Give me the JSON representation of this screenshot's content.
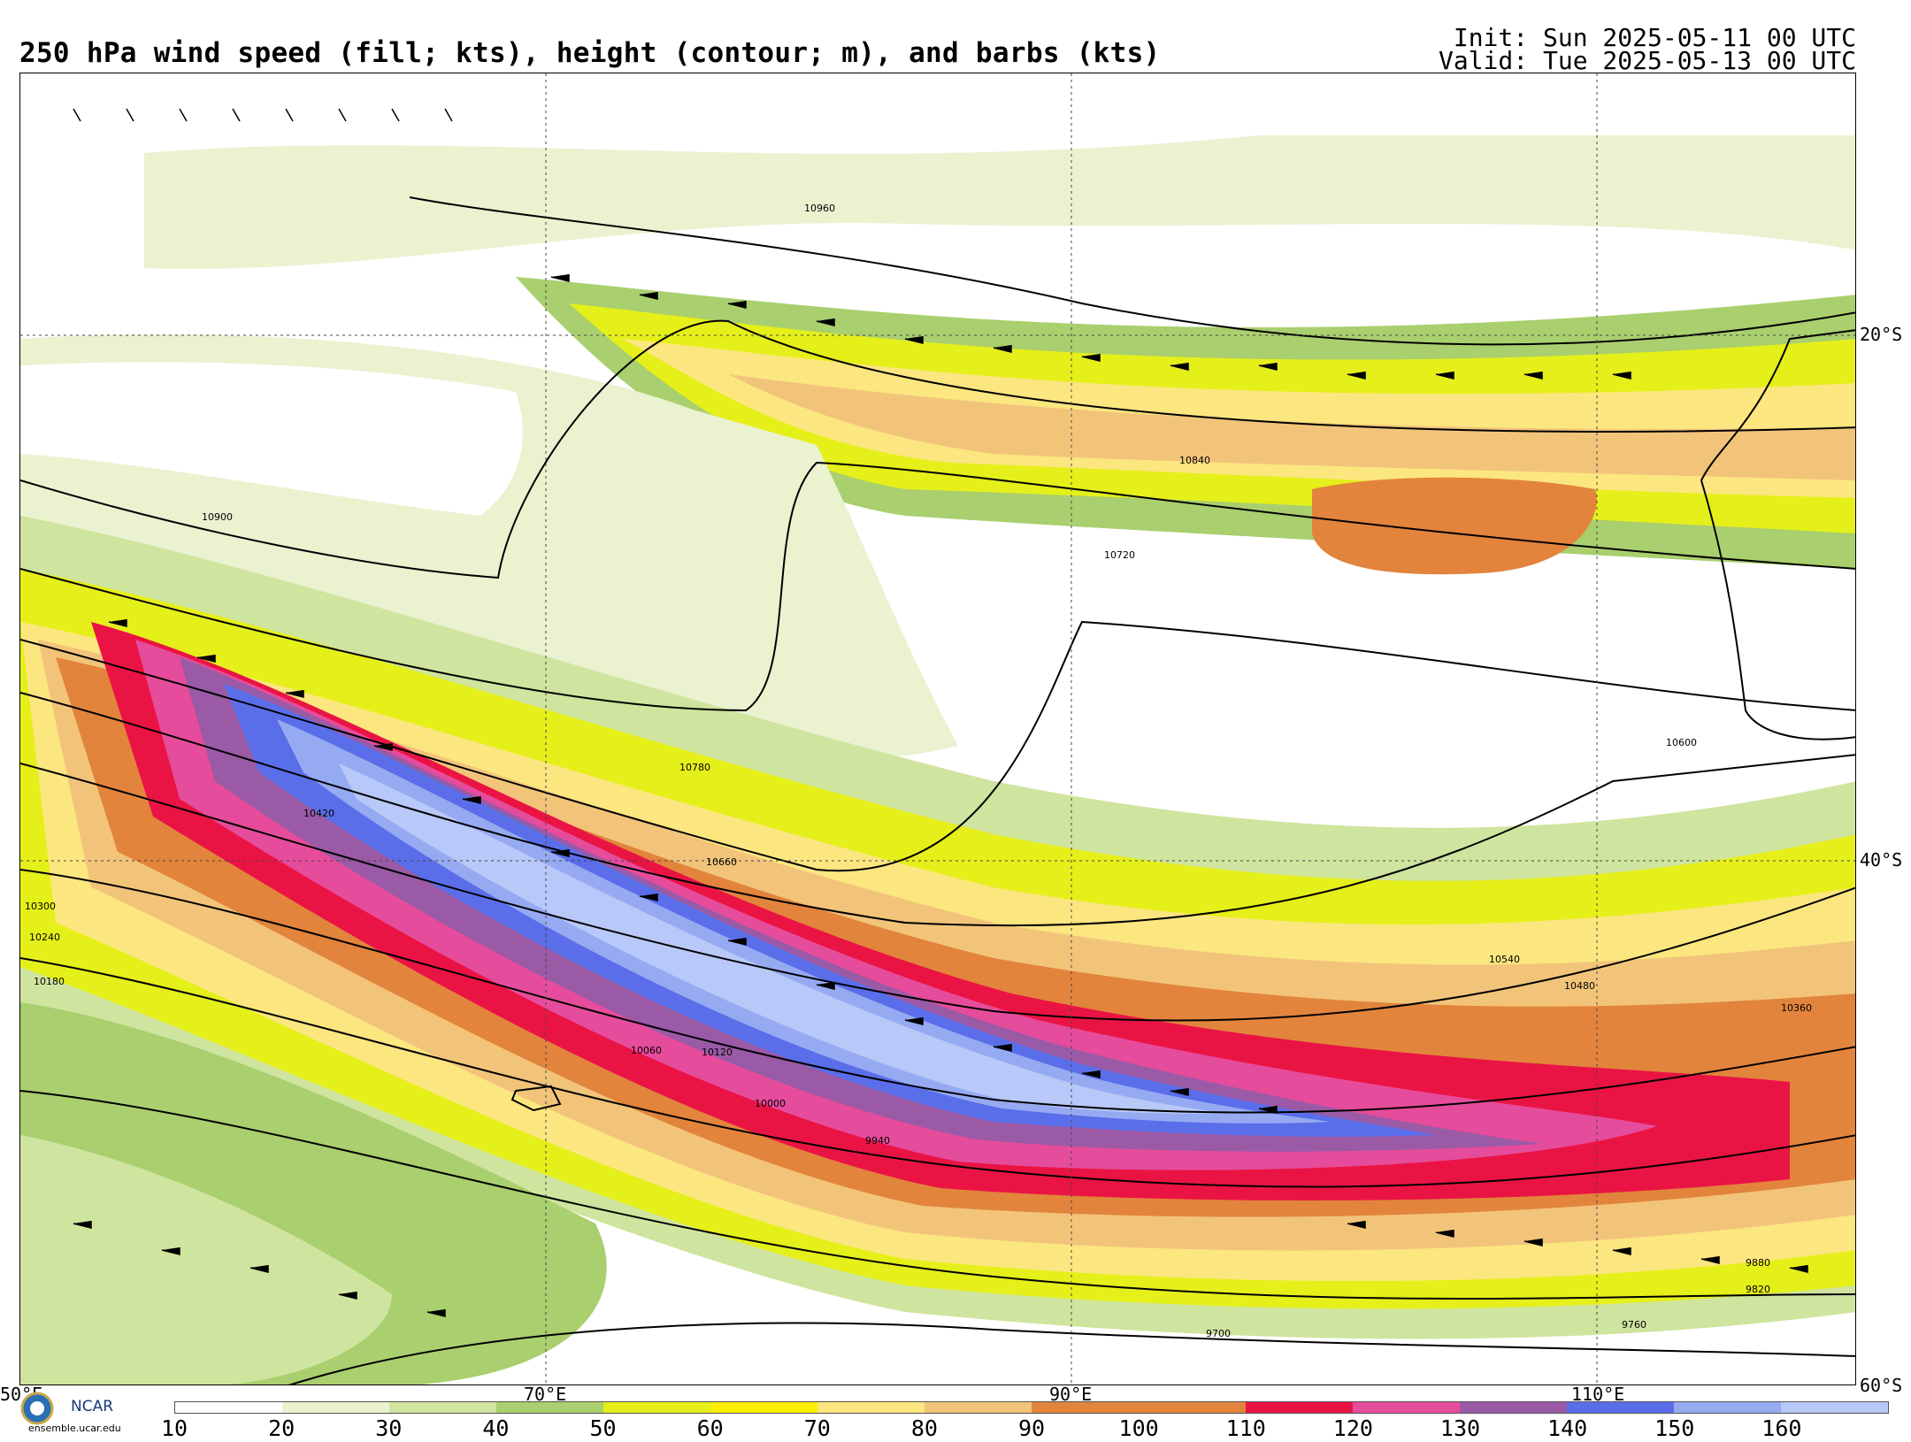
{
  "header": {
    "title": "250 hPa wind speed (fill; kts), height (contour; m), and barbs (kts)",
    "init": "Init: Sun 2025-05-11 00 UTC",
    "valid": "Valid: Tue 2025-05-13 00 UTC"
  },
  "map": {
    "lat_labels": [
      "20°S",
      "40°S",
      "60°S"
    ],
    "lon_labels": [
      "50°E",
      "70°E",
      "90°E",
      "110°E"
    ],
    "contour_labels": [
      "10960",
      "10900",
      "10840",
      "10720",
      "10780",
      "10660",
      "10600",
      "10540",
      "10480",
      "10420",
      "10360",
      "10300",
      "10240",
      "10180",
      "10120",
      "10060",
      "10000",
      "9940",
      "9880",
      "9820",
      "9760",
      "9700"
    ],
    "wind_speed_colors": {
      "c10": "#ffffff",
      "c20": "#eaf2d0",
      "c30": "#cfe49e",
      "c40": "#a9cf6e",
      "c50": "#e5ef1a",
      "c60": "#fbee00",
      "c70": "#fce680",
      "c80": "#f2c47a",
      "c90": "#e2843c",
      "c100": "#e2843c",
      "c110": "#ea1444",
      "c120": "#e64c9c",
      "c130": "#9a5aa6",
      "c140": "#5a6eea",
      "c150": "#96aaf2",
      "c160": "#b8c8f8"
    }
  },
  "colorbar": {
    "ticks": [
      "10",
      "20",
      "30",
      "40",
      "50",
      "60",
      "70",
      "80",
      "90",
      "100",
      "110",
      "120",
      "130",
      "140",
      "150",
      "160"
    ],
    "colors": [
      "#ffffff",
      "#eaf2d0",
      "#cfe49e",
      "#a9cf6e",
      "#e5ef1a",
      "#fbee00",
      "#fce680",
      "#f2c47a",
      "#e2843c",
      "#e2843c",
      "#ea1444",
      "#e64c9c",
      "#9a5aa6",
      "#5a6eea",
      "#96aaf2",
      "#b8c8f8"
    ]
  },
  "footer": {
    "org": "NCAR",
    "url": "ensemble.ucar.edu"
  }
}
